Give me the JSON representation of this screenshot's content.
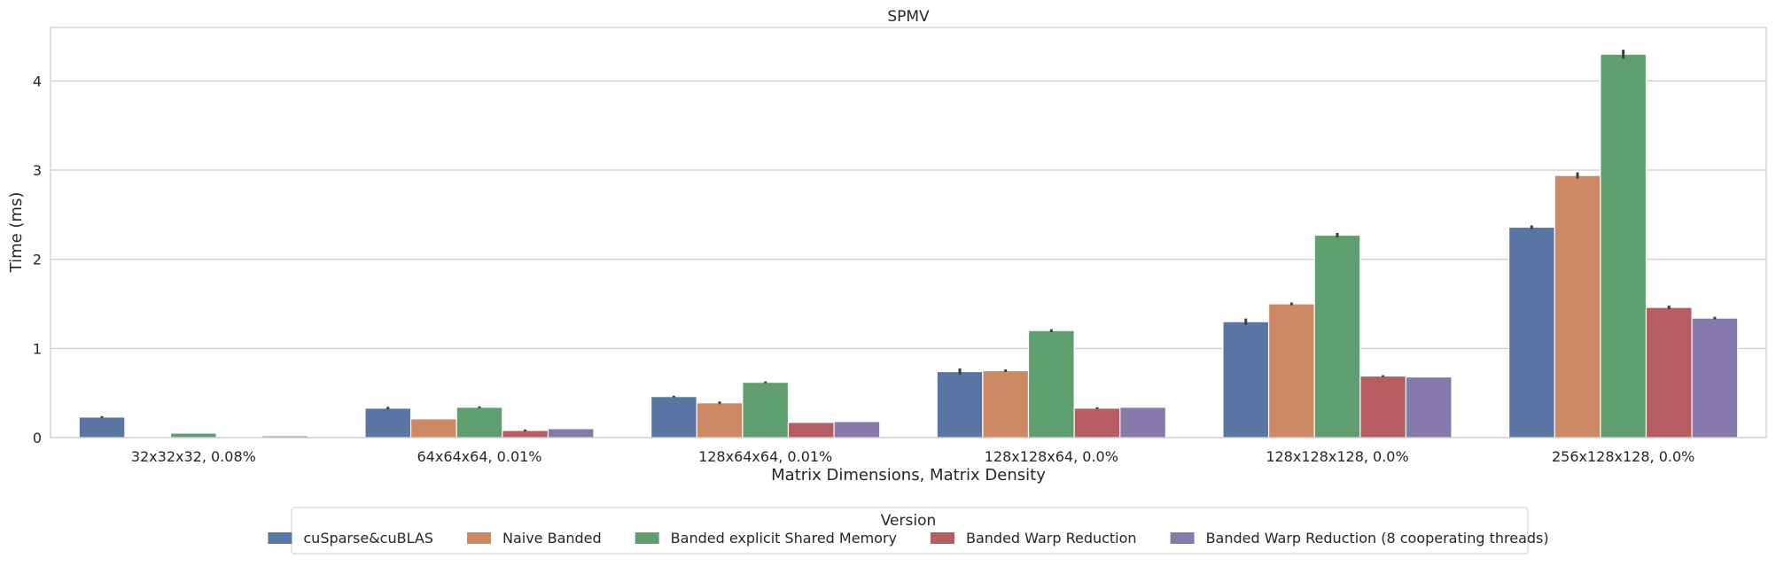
{
  "chart_data": {
    "type": "bar",
    "title": "SPMV",
    "xlabel": "Matrix Dimensions, Matrix Density",
    "ylabel": "Time (ms)",
    "ylim": [
      0,
      4.6
    ],
    "yticks": [
      0,
      1,
      2,
      3,
      4
    ],
    "grid": true,
    "legend": {
      "title": "Version",
      "placement": "bottom-center"
    },
    "categories": [
      "32x32x32, 0.08%",
      "64x64x64, 0.01%",
      "128x64x64, 0.01%",
      "128x128x64, 0.0%",
      "128x128x128, 0.0%",
      "256x128x128, 0.0%"
    ],
    "series": [
      {
        "name": "cuSparse&cuBLAS",
        "color": "#5975a4",
        "values": [
          0.23,
          0.33,
          0.46,
          0.74,
          1.3,
          2.36
        ],
        "errors": [
          0.02,
          0.03,
          0.02,
          0.07,
          0.07,
          0.04
        ]
      },
      {
        "name": "Naive Banded",
        "color": "#cc8963",
        "values": [
          0.005,
          0.21,
          0.39,
          0.75,
          1.5,
          2.94
        ],
        "errors": [
          0.0,
          0.0,
          0.03,
          0.03,
          0.03,
          0.07
        ]
      },
      {
        "name": "Banded explicit Shared Memory",
        "color": "#5f9e6e",
        "values": [
          0.05,
          0.34,
          0.62,
          1.2,
          2.27,
          4.3
        ],
        "errors": [
          0.0,
          0.02,
          0.02,
          0.03,
          0.05,
          0.1
        ]
      },
      {
        "name": "Banded Warp Reduction",
        "color": "#b55d60",
        "values": [
          0.005,
          0.08,
          0.17,
          0.33,
          0.69,
          1.46
        ],
        "errors": [
          0.0,
          0.02,
          0.0,
          0.02,
          0.02,
          0.04
        ]
      },
      {
        "name": "Banded Warp Reduction (8 cooperating threads)",
        "color": "#857aab",
        "values": [
          0.02,
          0.1,
          0.18,
          0.34,
          0.68,
          1.34
        ],
        "errors": [
          0.0,
          0.0,
          0.0,
          0.0,
          0.0,
          0.03
        ]
      }
    ]
  }
}
